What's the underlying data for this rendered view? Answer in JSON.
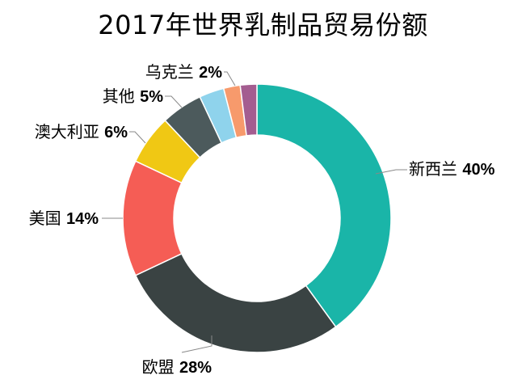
{
  "chart_data": {
    "type": "pie",
    "variant": "donut",
    "title": "2017年世界乳制品贸易份额",
    "slices": [
      {
        "label": "新西兰",
        "value": 40,
        "value_label": "40%",
        "color": "#1ab5a8"
      },
      {
        "label": "欧盟",
        "value": 28,
        "value_label": "28%",
        "color": "#3a4343"
      },
      {
        "label": "美国",
        "value": 14,
        "value_label": "14%",
        "color": "#f55d55"
      },
      {
        "label": "澳大利亚",
        "value": 6,
        "value_label": "6%",
        "color": "#f0c814"
      },
      {
        "label": "其他",
        "value": 5,
        "value_label": "5%",
        "color": "#4c5a5c"
      },
      {
        "label": "",
        "value": 3,
        "value_label": "",
        "color": "#8fd3ec"
      },
      {
        "label": "乌克兰",
        "value": 2,
        "value_label": "2%",
        "color": "#f79a6c"
      },
      {
        "label": "",
        "value": 2,
        "value_label": "",
        "color": "#a45d90"
      }
    ],
    "legend": "none"
  }
}
